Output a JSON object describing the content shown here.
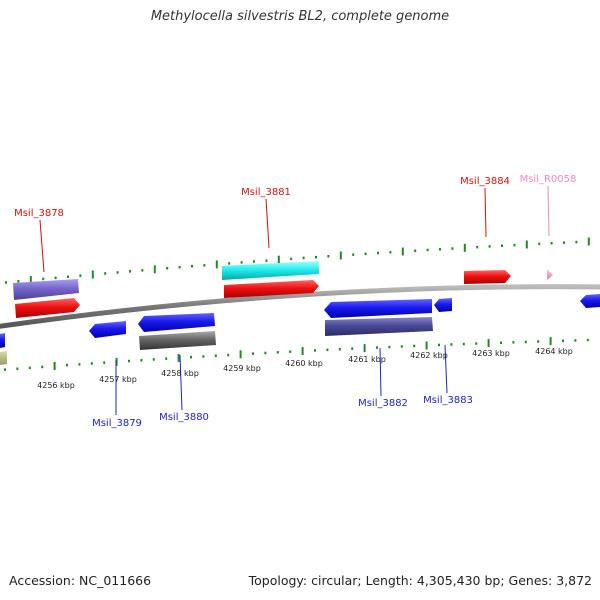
{
  "title": "Methylocella silvestris BL2, complete genome",
  "footer": {
    "accession": "Accession: NC_011666",
    "info": "Topology: circular; Length: 4,305,430 bp; Genes: 3,872"
  },
  "scale_labels": [
    "4256 kbp",
    "4257 kbp",
    "4258 kbp",
    "4259 kbp",
    "4260 kbp",
    "4261 kbp",
    "4262 kbp",
    "4263 kbp",
    "4264 kbp"
  ],
  "gene_labels": [
    {
      "text": "Msil_3878",
      "color": "#dd1111",
      "strand": "forward"
    },
    {
      "text": "Msil_3881",
      "color": "#dd1111",
      "strand": "forward"
    },
    {
      "text": "Msil_3884",
      "color": "#dd1111",
      "strand": "forward"
    },
    {
      "text": "Msil_R0058",
      "color": "#ee88bb",
      "strand": "forward"
    },
    {
      "text": "Msil_3879",
      "color": "#2222cc",
      "strand": "reverse"
    },
    {
      "text": "Msil_3880",
      "color": "#2222cc",
      "strand": "reverse"
    },
    {
      "text": "Msil_3882",
      "color": "#2222cc",
      "strand": "reverse"
    },
    {
      "text": "Msil_3883",
      "color": "#2222cc",
      "strand": "reverse"
    }
  ],
  "colors": {
    "backbone": "#888888",
    "tick": "#228822",
    "cds_forward": "#ee1111",
    "cds_reverse": "#1a1aee",
    "gene_forward": "#7766cc",
    "gene_reverse": "#4a4a99",
    "rRNA": "#22eeee",
    "tRNA": "#ee99cc",
    "pseudo_gene": "#666666",
    "misc": "#bbbb88"
  }
}
